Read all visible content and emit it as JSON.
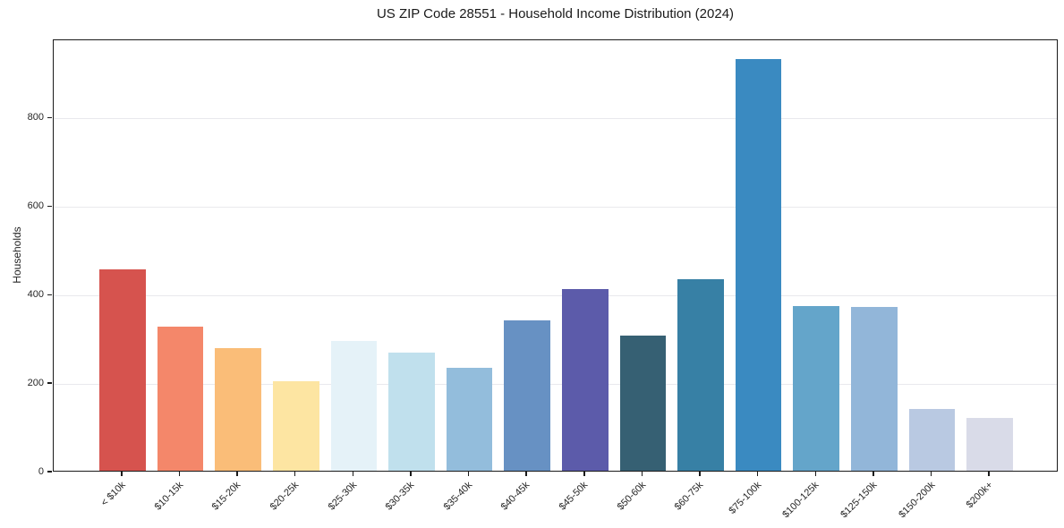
{
  "chart_data": {
    "type": "bar",
    "title": "US ZIP Code 28551 - Household Income Distribution (2024)",
    "xlabel": "",
    "ylabel": "Households",
    "categories": [
      "< $10k",
      "$10-15k",
      "$15-20k",
      "$20-25k",
      "$25-30k",
      "$30-35k",
      "$35-40k",
      "$40-45k",
      "$45-50k",
      "$50-60k",
      "$60-75k",
      "$75-100k",
      "$100-125k",
      "$125-150k",
      "$150-200k",
      "$200k+"
    ],
    "values": [
      455,
      325,
      278,
      203,
      293,
      268,
      232,
      340,
      410,
      305,
      432,
      930,
      372,
      370,
      140,
      120
    ],
    "bar_colors": [
      "#d6534e",
      "#f4876a",
      "#fabd78",
      "#fde5a2",
      "#e5f2f8",
      "#c0e0ed",
      "#93bddc",
      "#6791c3",
      "#5c5baa",
      "#366073",
      "#3780a5",
      "#3a8ac1",
      "#64a5ca",
      "#92b6d9",
      "#b9c9e2",
      "#d9dbe8"
    ],
    "yticks": [
      0,
      200,
      400,
      600,
      800
    ],
    "ylim": [
      0,
      977
    ],
    "bar_width_ratio": 0.8,
    "x_margin_ratio": 0.05,
    "grid": "horizontal",
    "legend": "none",
    "axis_color": "#1a1a1a",
    "grid_color": "#e9e9ed",
    "background": "#ffffff"
  }
}
